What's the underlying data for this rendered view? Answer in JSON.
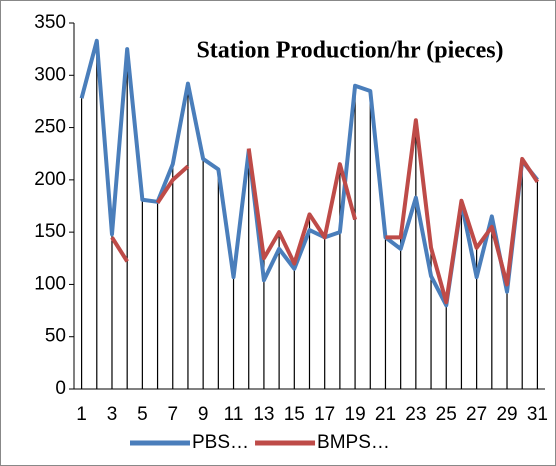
{
  "chart_data": {
    "type": "line",
    "title": "Station Production/hr (pieces)",
    "categories": [
      1,
      null,
      3,
      null,
      5,
      null,
      7,
      null,
      9,
      null,
      11,
      null,
      13,
      null,
      15,
      null,
      17,
      null,
      19,
      null,
      21,
      null,
      23,
      null,
      25,
      null,
      27,
      null,
      29,
      null,
      31
    ],
    "series": [
      {
        "name": "PBS…",
        "color": "#4a7ebb",
        "values": [
          278,
          333,
          148,
          325,
          181,
          179,
          215,
          292,
          220,
          210,
          107,
          228,
          104,
          134,
          115,
          152,
          145,
          150,
          290,
          285,
          145,
          134,
          183,
          108,
          80,
          178,
          107,
          165,
          93,
          218,
          200
        ]
      },
      {
        "name": "BMPS…",
        "color": "#be4b48",
        "values": [
          null,
          null,
          145,
          122,
          null,
          178,
          200,
          213,
          null,
          null,
          null,
          230,
          125,
          150,
          120,
          167,
          145,
          215,
          162,
          null,
          145,
          145,
          257,
          135,
          83,
          180,
          135,
          155,
          100,
          220,
          198
        ]
      }
    ],
    "ylim": [
      0,
      350
    ],
    "yticks": [
      0,
      50,
      100,
      150,
      200,
      250,
      300,
      350
    ],
    "drop_lines": true,
    "legend": "bottom"
  }
}
